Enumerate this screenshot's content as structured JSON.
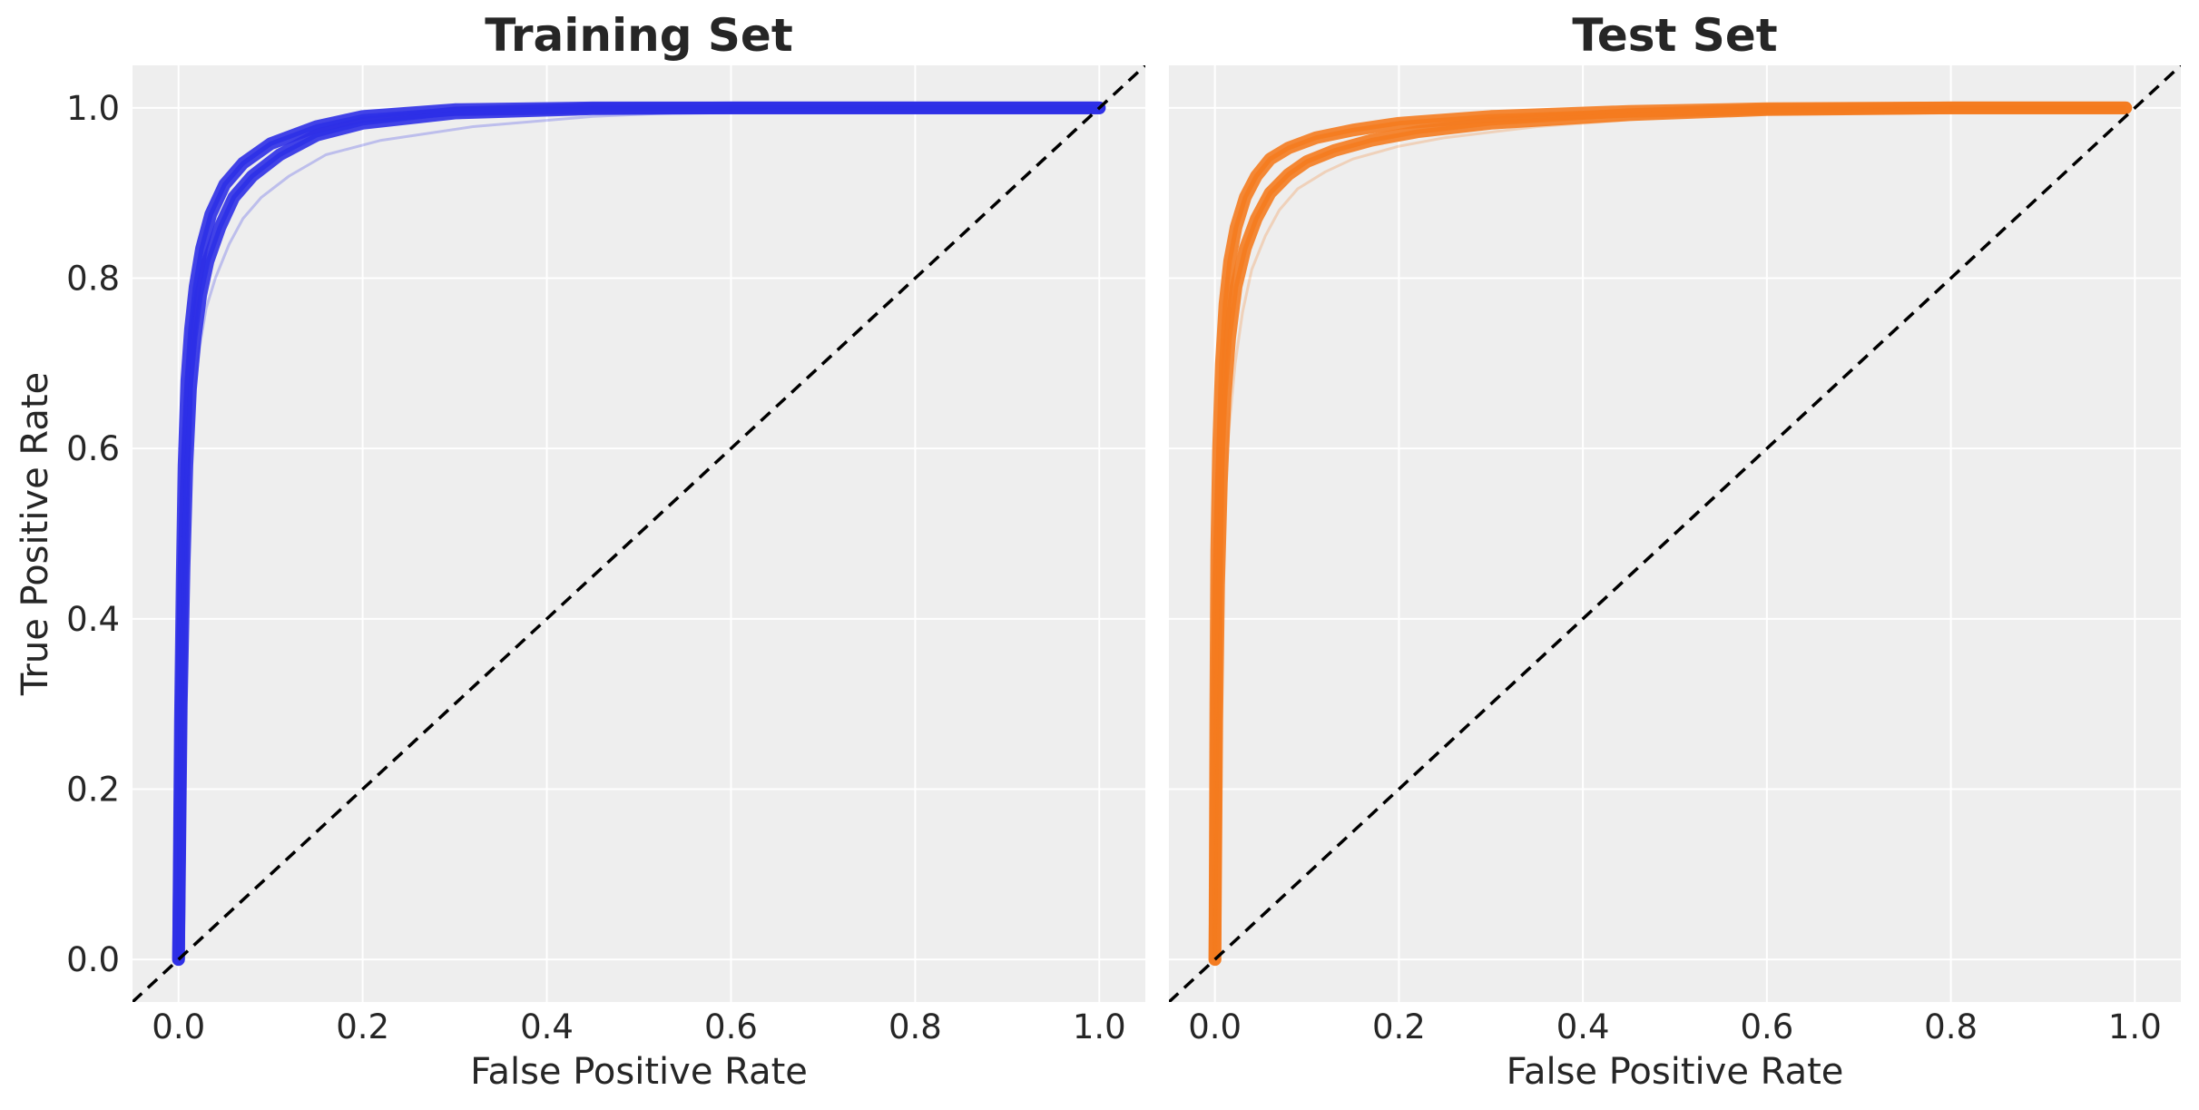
{
  "chart_data": [
    {
      "type": "line",
      "title": "Training Set",
      "xlabel": "False Positive Rate",
      "ylabel": "True Positive Rate",
      "xlim": [
        -0.05,
        1.05
      ],
      "ylim": [
        -0.05,
        1.05
      ],
      "xticks": [
        "0.0",
        "0.2",
        "0.4",
        "0.6",
        "0.8",
        "1.0"
      ],
      "yticks": [
        "0.0",
        "0.2",
        "0.4",
        "0.6",
        "0.8",
        "1.0"
      ],
      "grid": true,
      "color": "#2d2fe6",
      "reference_line": {
        "x": [
          -0.05,
          1.05
        ],
        "y": [
          -0.05,
          1.05
        ],
        "style": "dashed",
        "color": "#000000"
      },
      "series": [
        {
          "x": [
            0.0,
            0.002,
            0.004,
            0.006,
            0.009,
            0.013,
            0.018,
            0.025,
            0.035,
            0.05,
            0.07,
            0.1,
            0.15,
            0.2,
            0.3,
            0.45,
            0.6,
            0.8,
            1.0
          ],
          "y": [
            0.0,
            0.28,
            0.45,
            0.58,
            0.68,
            0.74,
            0.79,
            0.835,
            0.875,
            0.91,
            0.935,
            0.958,
            0.978,
            0.99,
            0.998,
            1.0,
            1.0,
            1.0,
            1.0
          ]
        },
        {
          "x": [
            0.0,
            0.003,
            0.006,
            0.009,
            0.013,
            0.018,
            0.024,
            0.032,
            0.045,
            0.06,
            0.08,
            0.11,
            0.15,
            0.2,
            0.3,
            0.45,
            0.6,
            0.8,
            1.0
          ],
          "y": [
            0.0,
            0.3,
            0.46,
            0.58,
            0.67,
            0.73,
            0.78,
            0.82,
            0.86,
            0.895,
            0.92,
            0.945,
            0.968,
            0.982,
            0.994,
            0.999,
            1.0,
            1.0,
            1.0
          ]
        },
        {
          "x": [
            0.0,
            0.004,
            0.008,
            0.012,
            0.017,
            0.023,
            0.03,
            0.04,
            0.055,
            0.07,
            0.09,
            0.12,
            0.16,
            0.22,
            0.32,
            0.45,
            0.6,
            0.8,
            1.0
          ],
          "y": [
            0.0,
            0.3,
            0.47,
            0.58,
            0.66,
            0.72,
            0.765,
            0.8,
            0.84,
            0.87,
            0.895,
            0.92,
            0.945,
            0.962,
            0.978,
            0.99,
            0.997,
            1.0,
            1.0
          ]
        }
      ]
    },
    {
      "type": "line",
      "title": "Test Set",
      "xlabel": "False Positive Rate",
      "ylabel": "",
      "xlim": [
        -0.05,
        1.05
      ],
      "ylim": [
        -0.05,
        1.05
      ],
      "xticks": [
        "0.0",
        "0.2",
        "0.4",
        "0.6",
        "0.8",
        "1.0"
      ],
      "yticks": [],
      "grid": true,
      "color": "#f47b1f",
      "reference_line": {
        "x": [
          -0.05,
          1.05
        ],
        "y": [
          -0.05,
          1.05
        ],
        "style": "dashed",
        "color": "#000000"
      },
      "series": [
        {
          "x": [
            0.0,
            0.001,
            0.002,
            0.004,
            0.007,
            0.011,
            0.016,
            0.023,
            0.033,
            0.045,
            0.06,
            0.08,
            0.11,
            0.15,
            0.2,
            0.3,
            0.45,
            0.6,
            0.8,
            0.99
          ],
          "y": [
            0.0,
            0.3,
            0.48,
            0.6,
            0.7,
            0.77,
            0.82,
            0.86,
            0.895,
            0.92,
            0.94,
            0.953,
            0.965,
            0.974,
            0.982,
            0.99,
            0.996,
            0.999,
            1.0,
            1.0
          ]
        },
        {
          "x": [
            0.0,
            0.002,
            0.004,
            0.007,
            0.011,
            0.016,
            0.023,
            0.033,
            0.045,
            0.06,
            0.08,
            0.1,
            0.13,
            0.17,
            0.22,
            0.3,
            0.45,
            0.6,
            0.8,
            0.99
          ],
          "y": [
            0.0,
            0.28,
            0.44,
            0.56,
            0.66,
            0.73,
            0.79,
            0.835,
            0.87,
            0.9,
            0.922,
            0.937,
            0.95,
            0.962,
            0.972,
            0.982,
            0.992,
            0.998,
            1.0,
            1.0
          ]
        },
        {
          "x": [
            0.0,
            0.003,
            0.006,
            0.01,
            0.015,
            0.022,
            0.03,
            0.04,
            0.055,
            0.07,
            0.09,
            0.12,
            0.15,
            0.2,
            0.25,
            0.35,
            0.5,
            0.65,
            0.8,
            0.99
          ],
          "y": [
            0.0,
            0.25,
            0.4,
            0.52,
            0.62,
            0.7,
            0.76,
            0.81,
            0.85,
            0.88,
            0.905,
            0.925,
            0.94,
            0.955,
            0.965,
            0.978,
            0.99,
            0.996,
            1.0,
            1.0
          ]
        }
      ]
    }
  ]
}
